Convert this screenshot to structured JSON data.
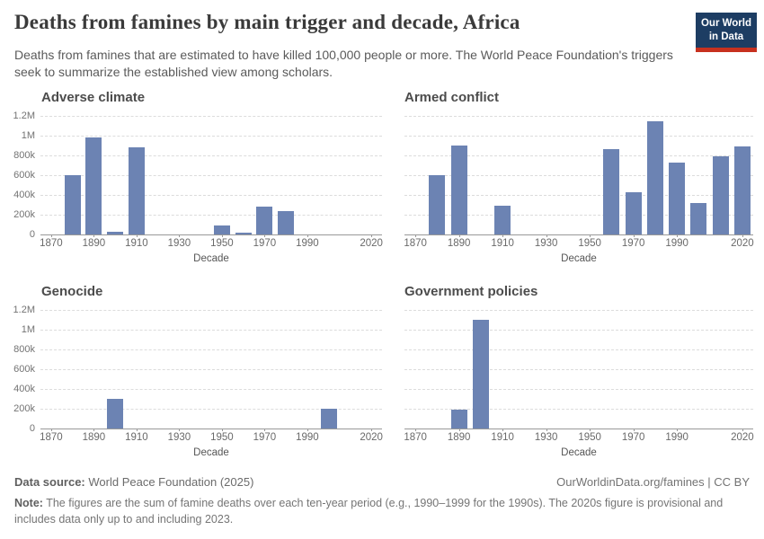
{
  "header": {
    "title": "Deaths from famines by main trigger and decade, Africa",
    "subtitle": "Deaths from famines that are estimated to have killed 100,000 people or more. The World Peace Foundation's triggers seek to summarize the established view among scholars.",
    "logo": {
      "line1": "Our World",
      "line2": "in Data"
    }
  },
  "axes": {
    "ylim": [
      0,
      1200000
    ],
    "x_domain": [
      1865,
      2025
    ],
    "grid": "horizontal dashed",
    "y_ticks": [
      {
        "value": 0,
        "label": "0"
      },
      {
        "value": 200000,
        "label": "200k"
      },
      {
        "value": 400000,
        "label": "400k"
      },
      {
        "value": 600000,
        "label": "600k"
      },
      {
        "value": 800000,
        "label": "800k"
      },
      {
        "value": 1000000,
        "label": "1M"
      },
      {
        "value": 1200000,
        "label": "1.2M"
      }
    ],
    "x_ticks": [
      {
        "value": 1870,
        "label": "1870"
      },
      {
        "value": 1890,
        "label": "1890"
      },
      {
        "value": 1910,
        "label": "1910"
      },
      {
        "value": 1930,
        "label": "1930"
      },
      {
        "value": 1950,
        "label": "1950"
      },
      {
        "value": 1970,
        "label": "1970"
      },
      {
        "value": 1990,
        "label": "1990"
      },
      {
        "value": 2020,
        "label": "2020"
      }
    ]
  },
  "chart_data": [
    {
      "type": "bar",
      "title": "Adverse climate",
      "xlabel": "Decade",
      "show_y_labels": true,
      "x": [
        1880,
        1890,
        1900,
        1910,
        1950,
        1960,
        1970,
        1980
      ],
      "values": [
        600000,
        980000,
        25000,
        880000,
        95000,
        15000,
        285000,
        240000
      ]
    },
    {
      "type": "bar",
      "title": "Armed conflict",
      "xlabel": "Decade",
      "show_y_labels": false,
      "x": [
        1880,
        1890,
        1910,
        1960,
        1970,
        1980,
        1990,
        2000,
        2010,
        2020
      ],
      "values": [
        600000,
        900000,
        290000,
        860000,
        430000,
        1150000,
        730000,
        320000,
        790000,
        890000
      ]
    },
    {
      "type": "bar",
      "title": "Genocide",
      "xlabel": "Decade",
      "show_y_labels": true,
      "x": [
        1900,
        2000
      ],
      "values": [
        300000,
        200000
      ]
    },
    {
      "type": "bar",
      "title": "Government policies",
      "xlabel": "Decade",
      "show_y_labels": false,
      "x": [
        1890,
        1900
      ],
      "values": [
        190000,
        1100000
      ]
    }
  ],
  "colors": {
    "bar": "#6c83b3",
    "logo_navy": "#1d3d63",
    "logo_red": "#c7311f",
    "gridline": "#dcdcdc",
    "axis": "#999999"
  },
  "footer": {
    "source_label": "Data source:",
    "source_value": "World Peace Foundation (2025)",
    "credit": "OurWorldinData.org/famines | CC BY",
    "note_label": "Note:",
    "note_text": "The figures are the sum of famine deaths over each ten-year period (e.g., 1990–1999 for the 1990s). The 2020s figure is provisional and includes data only up to and including 2023."
  }
}
